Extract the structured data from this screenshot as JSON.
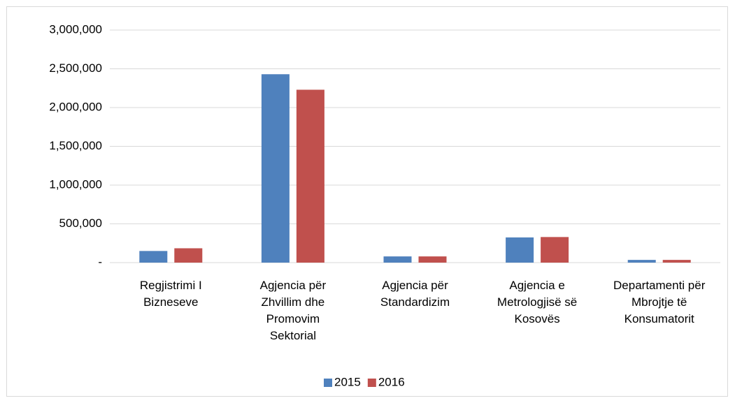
{
  "chart_data": {
    "type": "bar",
    "categories": [
      "Regjistrimi I Bizneseve",
      "Agjencia për Zhvillim dhe Promovim Sektorial",
      "Agjencia për Standardizim",
      "Agjencia e Metrologjisë së Kosovës",
      "Departamenti për Mbrojtje të Konsumatorit"
    ],
    "series": [
      {
        "name": "2015",
        "color": "#4f81bd",
        "values": [
          150000,
          2430000,
          80000,
          325000,
          35000
        ]
      },
      {
        "name": "2016",
        "color": "#c0504d",
        "values": [
          185000,
          2230000,
          80000,
          330000,
          35000
        ]
      }
    ],
    "ylim": [
      0,
      3000000
    ],
    "yticks": [
      {
        "value": 0,
        "label": "-"
      },
      {
        "value": 500000,
        "label": "500,000"
      },
      {
        "value": 1000000,
        "label": "1,000,000"
      },
      {
        "value": 1500000,
        "label": "1,500,000"
      },
      {
        "value": 2000000,
        "label": "2,000,000"
      },
      {
        "value": 2500000,
        "label": "2,500,000"
      },
      {
        "value": 3000000,
        "label": "3,000,000"
      }
    ],
    "grid": true,
    "legend": "bottom"
  }
}
